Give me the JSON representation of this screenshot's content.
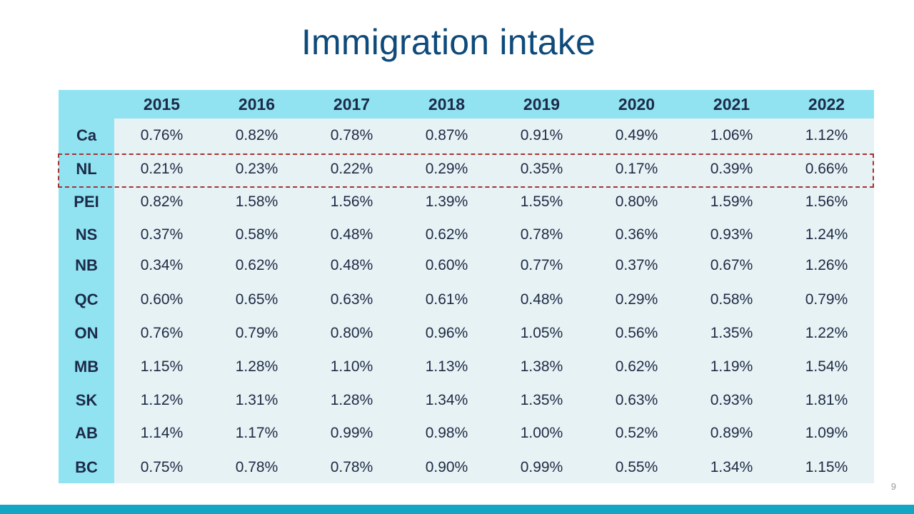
{
  "slide": {
    "title": "Immigration intake",
    "page_number": "9"
  },
  "table": {
    "corner": "",
    "years": [
      "2015",
      "2016",
      "2017",
      "2018",
      "2019",
      "2020",
      "2021",
      "2022"
    ],
    "rows": [
      {
        "region": "Ca",
        "values": [
          "0.76%",
          "0.82%",
          "0.78%",
          "0.87%",
          "0.91%",
          "0.49%",
          "1.06%",
          "1.12%"
        ]
      },
      {
        "region": "NL",
        "values": [
          "0.21%",
          "0.23%",
          "0.22%",
          "0.29%",
          "0.35%",
          "0.17%",
          "0.39%",
          "0.66%"
        ],
        "highlighted": true
      },
      {
        "region": "PEI",
        "values": [
          "0.82%",
          "1.58%",
          "1.56%",
          "1.39%",
          "1.55%",
          "0.80%",
          "1.59%",
          "1.56%"
        ]
      },
      {
        "region": "NS",
        "values": [
          "0.37%",
          "0.58%",
          "0.48%",
          "0.62%",
          "0.78%",
          "0.36%",
          "0.93%",
          "1.24%"
        ]
      },
      {
        "region": "NB",
        "values": [
          "0.34%",
          "0.62%",
          "0.48%",
          "0.60%",
          "0.77%",
          "0.37%",
          "0.67%",
          "1.26%"
        ]
      },
      {
        "region": "QC",
        "values": [
          "0.60%",
          "0.65%",
          "0.63%",
          "0.61%",
          "0.48%",
          "0.29%",
          "0.58%",
          "0.79%"
        ]
      },
      {
        "region": "ON",
        "values": [
          "0.76%",
          "0.79%",
          "0.80%",
          "0.96%",
          "1.05%",
          "0.56%",
          "1.35%",
          "1.22%"
        ]
      },
      {
        "region": "MB",
        "values": [
          "1.15%",
          "1.28%",
          "1.10%",
          "1.13%",
          "1.38%",
          "0.62%",
          "1.19%",
          "1.54%"
        ]
      },
      {
        "region": "SK",
        "values": [
          "1.12%",
          "1.31%",
          "1.28%",
          "1.34%",
          "1.35%",
          "0.63%",
          "0.93%",
          "1.81%"
        ]
      },
      {
        "region": "AB",
        "values": [
          "1.14%",
          "1.17%",
          "0.99%",
          "0.98%",
          "1.00%",
          "0.52%",
          "0.89%",
          "1.09%"
        ]
      },
      {
        "region": "BC",
        "values": [
          "0.75%",
          "0.78%",
          "0.78%",
          "0.90%",
          "0.99%",
          "0.55%",
          "1.34%",
          "1.15%"
        ]
      }
    ]
  },
  "colors": {
    "title": "#0e4a7a",
    "header_fill": "#91e3f2",
    "body_fill": "#e7f2f5",
    "highlight_border": "#a63232",
    "footer_bar": "#12a6c4"
  }
}
